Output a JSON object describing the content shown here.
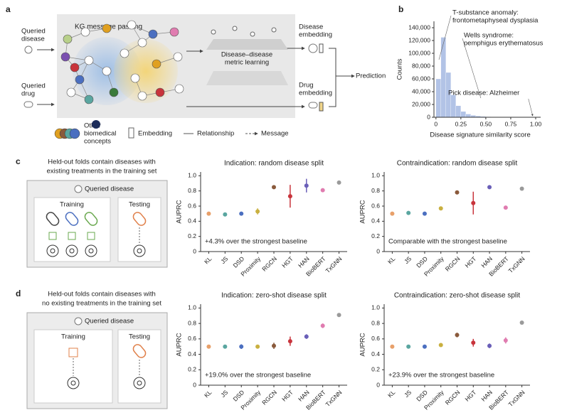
{
  "panels": {
    "a": "a",
    "b": "b",
    "c": "c",
    "d": "d"
  },
  "diagram": {
    "kg_title": "KG message passing",
    "queried_disease": [
      "Queried",
      "disease"
    ],
    "queried_drug": [
      "Queried",
      "drug"
    ],
    "metric_learning": [
      "Disease–disease",
      "metric learning"
    ],
    "disease_embedding": [
      "Disease",
      "embedding"
    ],
    "drug_embedding": [
      "Drug",
      "embedding"
    ],
    "prediction": "Prediction",
    "legend_concepts": [
      "Other",
      "biomedical",
      "concepts"
    ],
    "legend_embedding": "Embedding",
    "legend_relationship": "Relationship",
    "legend_message": "Message"
  },
  "schematics": [
    {
      "caption": [
        "Held-out folds contain diseases with",
        "existing treatments in the training set"
      ],
      "queried": "Queried disease",
      "training": "Training",
      "testing": "Testing"
    },
    {
      "caption": [
        "Held-out folds contain diseases with",
        "no existing treatments in the training set"
      ],
      "queried": "Queried disease",
      "training": "Training",
      "testing": "Testing"
    }
  ],
  "chart_data": [
    {
      "type": "histogram",
      "xlabel": "Disease signature similarity score",
      "ylabel": "Counts",
      "bins": [
        0,
        0.05,
        0.1,
        0.15,
        0.2,
        0.25,
        0.3,
        0.35,
        0.4,
        0.45,
        0.5,
        0.55,
        0.6,
        0.65,
        0.7,
        0.75,
        0.8,
        0.85,
        0.9,
        0.95,
        1.0
      ],
      "counts": [
        60000,
        125000,
        70000,
        35000,
        18000,
        9000,
        5000,
        3000,
        2000,
        1200,
        800,
        500,
        300,
        200,
        100,
        60,
        30,
        10,
        5,
        2
      ],
      "color": "#b2c3e6",
      "xlim": [
        -0.02,
        1.05
      ],
      "ylim": [
        0,
        150000
      ],
      "xticks": [
        0,
        0.25,
        {
          "value": 0.5,
          "label": "0.50"
        },
        0.75,
        {
          "value": 1,
          "label": "1.00"
        }
      ],
      "yticks": [
        0,
        {
          "value": 20000,
          "label": "20,000"
        },
        {
          "value": 40000,
          "label": "40,000"
        },
        {
          "value": 60000,
          "label": "60,000"
        },
        {
          "value": 80000,
          "label": "80,000"
        },
        {
          "value": 100000,
          "label": "100,000"
        },
        {
          "value": 120000,
          "label": "120,000"
        },
        {
          "value": 140000,
          "label": "140,000"
        }
      ],
      "annotations": [
        {
          "text": [
            "T-substance anomaly:",
            "frontometaphyseal dysplasia"
          ],
          "x": 0.03
        },
        {
          "text": [
            "Wells syndrome:",
            "pemphigus erythematosus"
          ],
          "x": 0.45
        },
        {
          "text": [
            "Pick disease: Alzheimer"
          ],
          "x": 0.97
        }
      ]
    },
    {
      "type": "errorbar",
      "title": "Indication: random disease split",
      "ylabel": "AUPRC",
      "categories": [
        "KL",
        "JS",
        "DSD",
        "Proximity",
        "RGCN",
        "HGT",
        "HAN",
        "BioBERT",
        "TxGNN"
      ],
      "values": [
        0.5,
        0.49,
        0.5,
        0.53,
        0.85,
        0.73,
        0.87,
        0.81,
        0.91
      ],
      "errors": [
        0.01,
        0.01,
        0.02,
        0.04,
        0.02,
        0.15,
        0.09,
        0.02,
        0.02
      ],
      "colors": [
        "#e8a06a",
        "#5aa6a0",
        "#4b6fc0",
        "#c9b040",
        "#8a5a3c",
        "#c8343c",
        "#6a5fb8",
        "#e07cb0",
        "#9a9a9a"
      ],
      "ylim": [
        0,
        1.05
      ],
      "yticks": [
        0,
        0.2,
        0.4,
        0.6,
        0.8,
        {
          "value": 1,
          "label": "1.0"
        }
      ],
      "annotation": "+4.3% over the strongest baseline"
    },
    {
      "type": "errorbar",
      "title": "Contraindication: random disease split",
      "ylabel": "AUPRC",
      "categories": [
        "KL",
        "JS",
        "DSD",
        "Proximity",
        "RGCN",
        "HGT",
        "HAN",
        "BioBERT",
        "TxGNN"
      ],
      "values": [
        0.5,
        0.51,
        0.5,
        0.57,
        0.78,
        0.64,
        0.85,
        0.58,
        0.83
      ],
      "errors": [
        0.01,
        0.01,
        0.01,
        0.01,
        0.02,
        0.15,
        0.01,
        0.02,
        0.01
      ],
      "colors": [
        "#e8a06a",
        "#5aa6a0",
        "#4b6fc0",
        "#c9b040",
        "#8a5a3c",
        "#c8343c",
        "#6a5fb8",
        "#e07cb0",
        "#9a9a9a"
      ],
      "ylim": [
        0,
        1.05
      ],
      "yticks": [
        0,
        0.2,
        0.4,
        0.6,
        0.8,
        {
          "value": 1,
          "label": "1.0"
        }
      ],
      "annotation": "Comparable with the strongest baseline"
    },
    {
      "type": "errorbar",
      "title": "Indication: zero-shot disease split",
      "ylabel": "AUPRC",
      "categories": [
        "KL",
        "JS",
        "DSD",
        "Proximity",
        "RGCN",
        "HGT",
        "HAN",
        "BioBERT",
        "TxGNN"
      ],
      "values": [
        0.5,
        0.5,
        0.5,
        0.5,
        0.51,
        0.57,
        0.63,
        0.77,
        0.91
      ],
      "errors": [
        0.02,
        0.01,
        0.03,
        0.01,
        0.04,
        0.06,
        0.03,
        0.03,
        0.02
      ],
      "colors": [
        "#e8a06a",
        "#5aa6a0",
        "#4b6fc0",
        "#c9b040",
        "#8a5a3c",
        "#c8343c",
        "#6a5fb8",
        "#e07cb0",
        "#9a9a9a"
      ],
      "ylim": [
        0,
        1.05
      ],
      "yticks": [
        0,
        0.2,
        0.4,
        0.6,
        0.8,
        {
          "value": 1,
          "label": "1.0"
        }
      ],
      "annotation": "+19.0% over the strongest baseline"
    },
    {
      "type": "errorbar",
      "title": "Contraindication: zero-shot disease split",
      "ylabel": "AUPRC",
      "categories": [
        "KL",
        "JS",
        "DSD",
        "Proximity",
        "RGCN",
        "HGT",
        "HAN",
        "BioBERT",
        "TxGNN"
      ],
      "values": [
        0.5,
        0.5,
        0.5,
        0.52,
        0.65,
        0.55,
        0.51,
        0.58,
        0.81
      ],
      "errors": [
        0.01,
        0.02,
        0.02,
        0.01,
        0.03,
        0.05,
        0.03,
        0.04,
        0.01
      ],
      "colors": [
        "#e8a06a",
        "#5aa6a0",
        "#4b6fc0",
        "#c9b040",
        "#8a5a3c",
        "#c8343c",
        "#6a5fb8",
        "#e07cb0",
        "#9a9a9a"
      ],
      "ylim": [
        0,
        1.05
      ],
      "yticks": [
        0,
        0.2,
        0.4,
        0.6,
        0.8,
        {
          "value": 1,
          "label": "1.0"
        }
      ],
      "annotation": "+23.9% over the strongest baseline"
    }
  ]
}
